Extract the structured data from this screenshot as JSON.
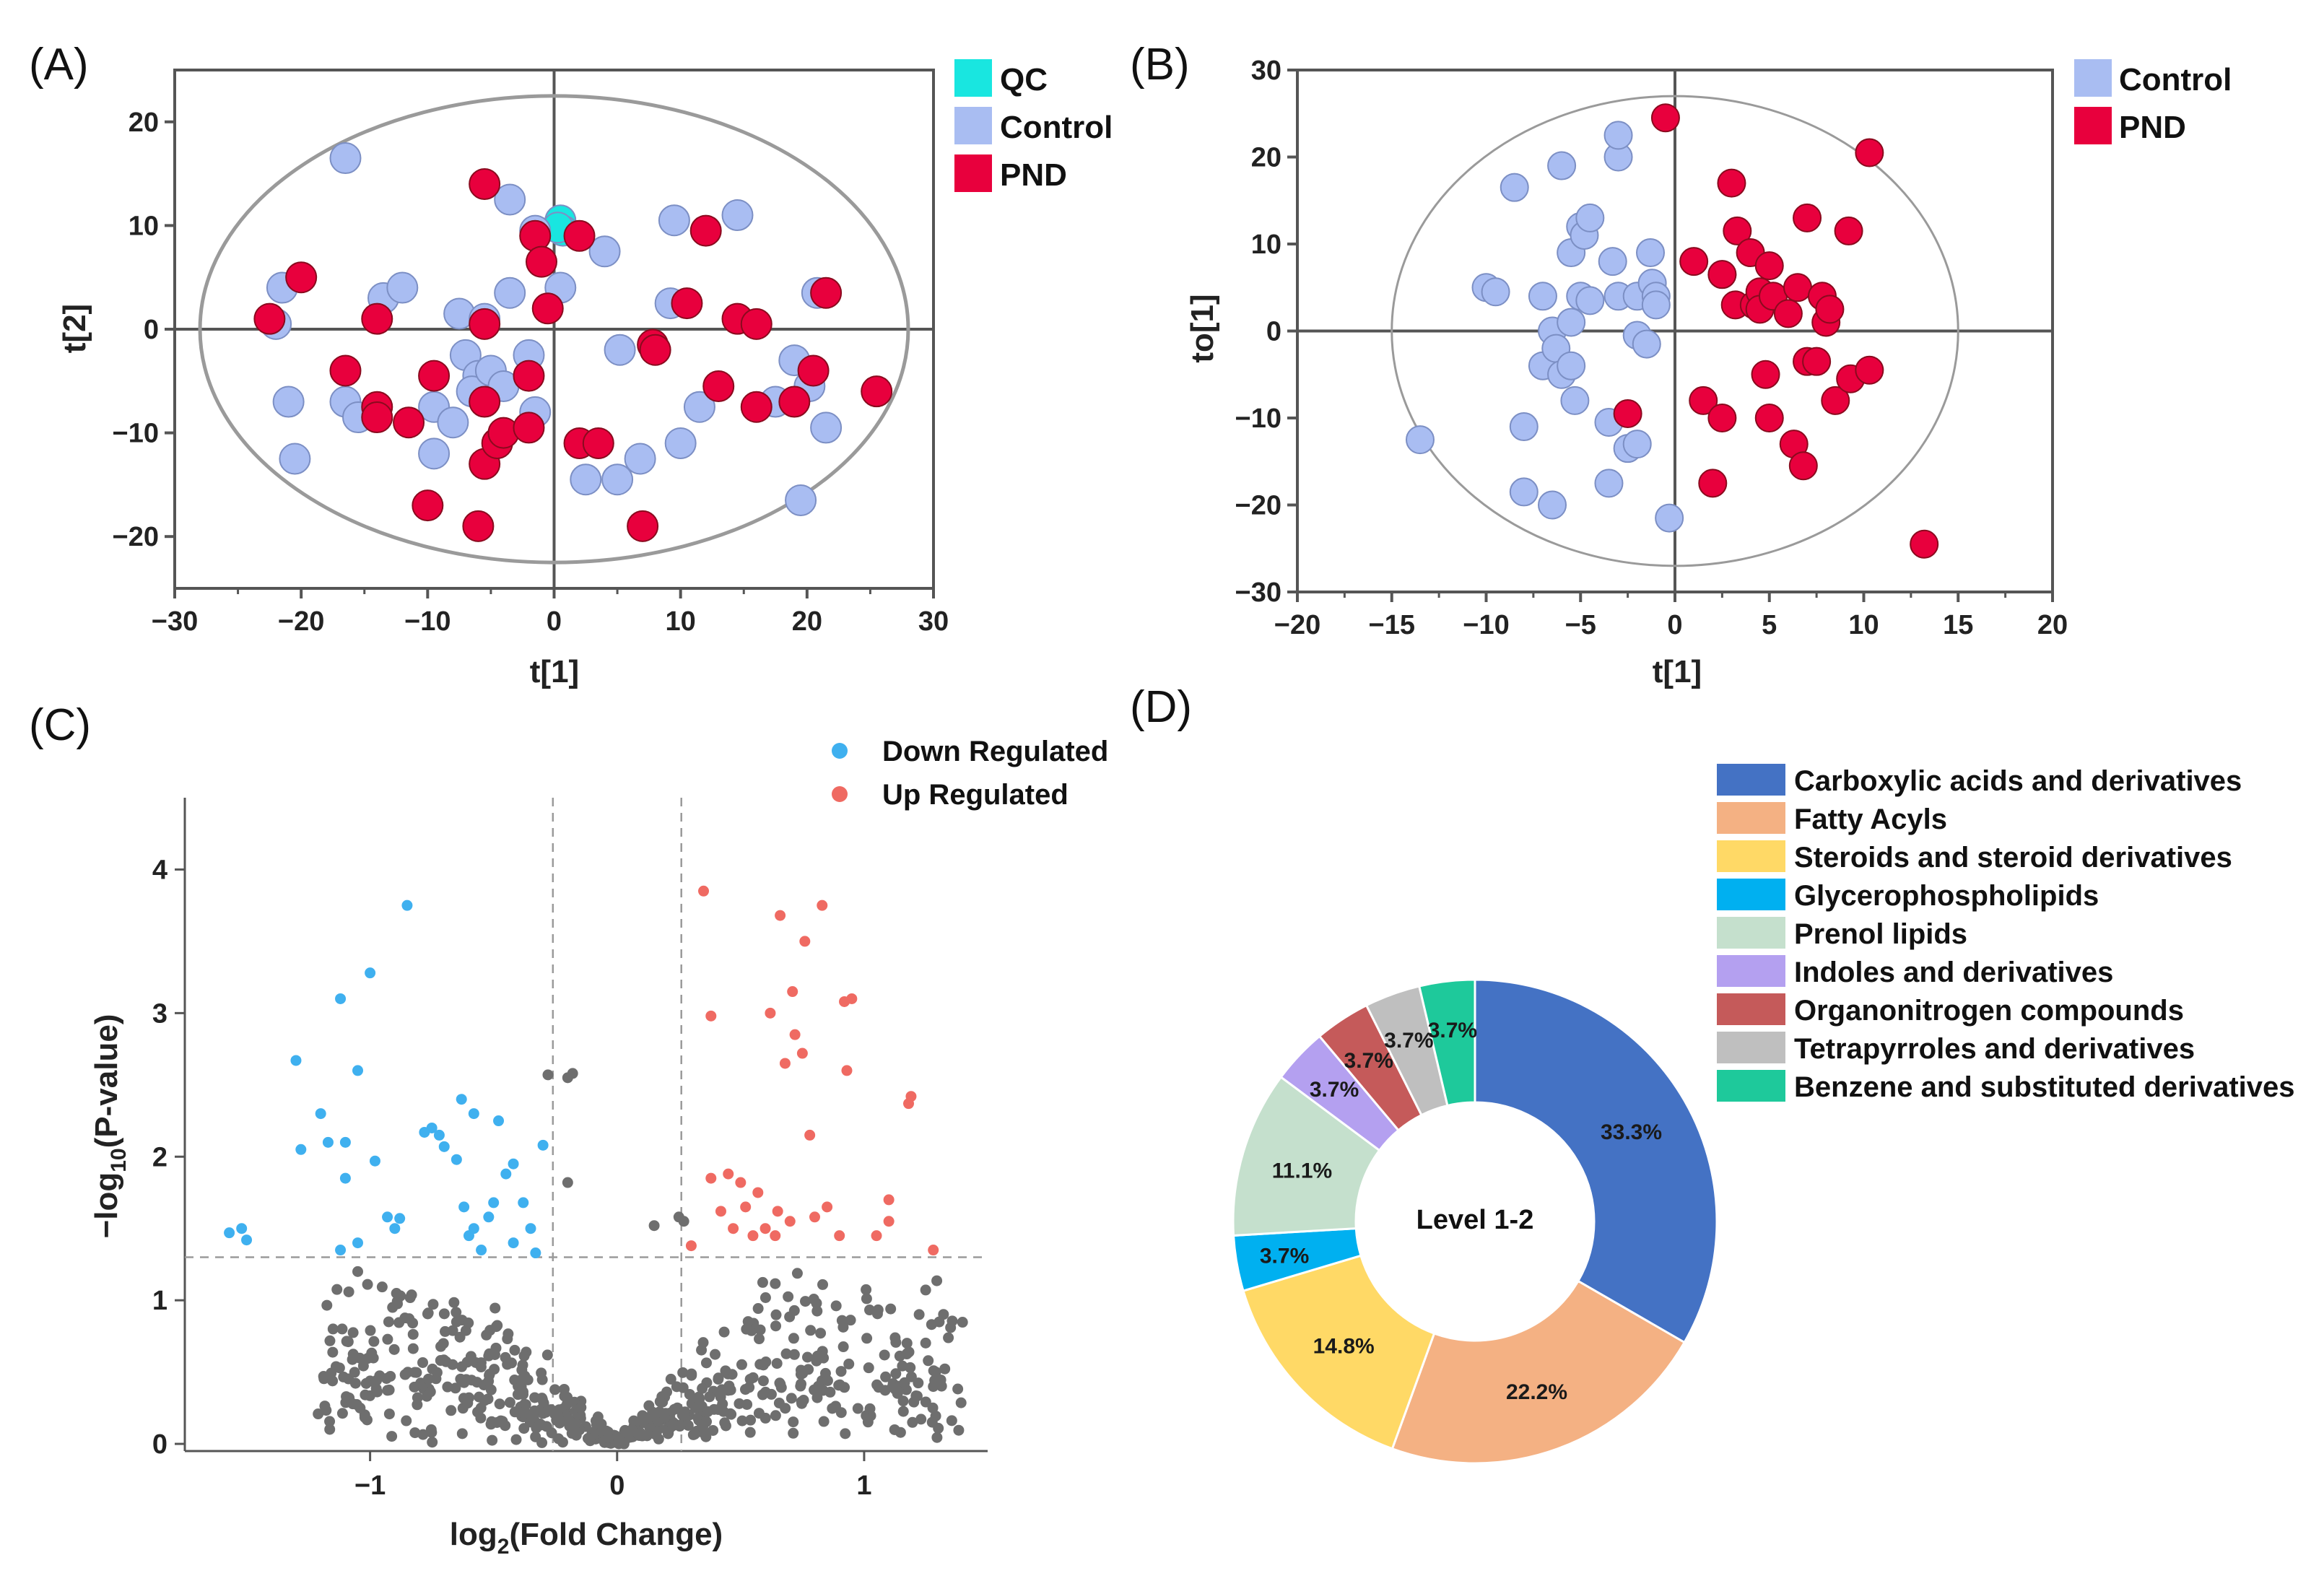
{
  "colors": {
    "qc": "#19e6e0",
    "control": "#a9bdf2",
    "pnd": "#e8003d",
    "down": "#3fb0ef",
    "up": "#ef6a62",
    "ns": "#6e6e6e",
    "ellipse": "#9a9a9a",
    "axis": "#555555"
  },
  "chart_data": [
    {
      "id": "A",
      "panel_label": "(A)",
      "type": "scatter",
      "xlabel": "t[1]",
      "ylabel": "t[2]",
      "xlim": [
        -30,
        30
      ],
      "ylim": [
        -25,
        25
      ],
      "xticks": [
        "−30",
        "−20",
        "−10",
        "0",
        "10",
        "20",
        "30"
      ],
      "yticks": [
        "−20",
        "−10",
        "0",
        "10",
        "20"
      ],
      "ellipse": {
        "rx": 28,
        "ry": 22.5
      },
      "legend": [
        "QC",
        "Control",
        "PND"
      ],
      "series": [
        {
          "name": "QC",
          "color_key": "qc",
          "points": [
            [
              0.5,
              10.5
            ],
            [
              0.7,
              9.5
            ],
            [
              0.3,
              9.8
            ]
          ]
        },
        {
          "name": "Control",
          "color_key": "control",
          "points": [
            [
              -16.5,
              16.5
            ],
            [
              -21.5,
              4
            ],
            [
              -22,
              0.5
            ],
            [
              -21,
              -7
            ],
            [
              -20.5,
              -12.5
            ],
            [
              -16.5,
              -7
            ],
            [
              -15.5,
              -8.5
            ],
            [
              -13.5,
              3
            ],
            [
              -12,
              4
            ],
            [
              -9.5,
              -7.5
            ],
            [
              -9.5,
              -12
            ],
            [
              -8,
              -9
            ],
            [
              -7.5,
              1.5
            ],
            [
              -7,
              -2.5
            ],
            [
              -6,
              -4.5
            ],
            [
              -6.5,
              -6
            ],
            [
              -5,
              -4
            ],
            [
              -5.5,
              1
            ],
            [
              -4,
              -5.5
            ],
            [
              -3.5,
              12.5
            ],
            [
              -3.5,
              3.5
            ],
            [
              -2,
              -2.5
            ],
            [
              -1.5,
              -8
            ],
            [
              -1.5,
              9.5
            ],
            [
              0.5,
              4
            ],
            [
              2.5,
              -14.5
            ],
            [
              4,
              7.5
            ],
            [
              5,
              -14.5
            ],
            [
              5.2,
              -2
            ],
            [
              6.8,
              -12.5
            ],
            [
              9.2,
              2.5
            ],
            [
              9.5,
              10.5
            ],
            [
              10,
              -11
            ],
            [
              11.5,
              -7.5
            ],
            [
              14.5,
              11
            ],
            [
              17.5,
              -7
            ],
            [
              19,
              -3
            ],
            [
              19.5,
              -16.5
            ],
            [
              20.2,
              -5.5
            ],
            [
              20.8,
              3.5
            ],
            [
              21.5,
              -9.5
            ]
          ]
        },
        {
          "name": "PND",
          "color_key": "pnd",
          "points": [
            [
              -22.5,
              1
            ],
            [
              -20,
              5
            ],
            [
              -16.5,
              -4
            ],
            [
              -14,
              1
            ],
            [
              -14,
              -7.5
            ],
            [
              -14,
              -8.5
            ],
            [
              -11.5,
              -9
            ],
            [
              -10,
              -17
            ],
            [
              -9.5,
              -4.5
            ],
            [
              -6,
              -19
            ],
            [
              -5.5,
              14
            ],
            [
              -5.5,
              0.5
            ],
            [
              -5.5,
              -7
            ],
            [
              -5.5,
              -13
            ],
            [
              -4.5,
              -11
            ],
            [
              -4,
              -10
            ],
            [
              -2,
              -9.5
            ],
            [
              -2,
              -4.5
            ],
            [
              -1.5,
              9
            ],
            [
              -1,
              6.5
            ],
            [
              -0.5,
              2
            ],
            [
              2,
              9
            ],
            [
              2,
              -11
            ],
            [
              3.5,
              -11
            ],
            [
              7,
              -19
            ],
            [
              7.8,
              -1.5
            ],
            [
              8,
              -2
            ],
            [
              10.5,
              2.5
            ],
            [
              12,
              9.5
            ],
            [
              13,
              -5.5
            ],
            [
              14.5,
              1
            ],
            [
              16,
              0.5
            ],
            [
              16,
              -7.5
            ],
            [
              19,
              -7
            ],
            [
              20.5,
              -4
            ],
            [
              21.5,
              3.5
            ],
            [
              25.5,
              -6
            ]
          ]
        }
      ]
    },
    {
      "id": "B",
      "panel_label": "(B)",
      "type": "scatter",
      "xlabel": "t[1]",
      "ylabel": "to[1]",
      "xlim": [
        -20,
        20
      ],
      "ylim": [
        -30,
        30
      ],
      "xticks": [
        "−20",
        "−15",
        "−10",
        "−5",
        "0",
        "5",
        "10",
        "15",
        "20"
      ],
      "yticks": [
        "−30",
        "−20",
        "−10",
        "0",
        "10",
        "20",
        "30"
      ],
      "ellipse": {
        "rx": 15,
        "ry": 27
      },
      "legend": [
        "Control",
        "PND"
      ],
      "series": [
        {
          "name": "Control",
          "color_key": "control",
          "points": [
            [
              -13.5,
              -12.5
            ],
            [
              -10,
              5
            ],
            [
              -9.5,
              4.5
            ],
            [
              -8.5,
              16.5
            ],
            [
              -8,
              -11
            ],
            [
              -8,
              -18.5
            ],
            [
              -7,
              -4
            ],
            [
              -7,
              4
            ],
            [
              -6.5,
              -20
            ],
            [
              -6.5,
              0
            ],
            [
              -6.3,
              -2
            ],
            [
              -6,
              -5
            ],
            [
              -6,
              19
            ],
            [
              -5.5,
              9
            ],
            [
              -5.5,
              -4
            ],
            [
              -5.5,
              1
            ],
            [
              -5.3,
              -8
            ],
            [
              -5,
              4
            ],
            [
              -5,
              12
            ],
            [
              -4.8,
              11
            ],
            [
              -4.5,
              3.5
            ],
            [
              -4.5,
              13
            ],
            [
              -3.5,
              -10.5
            ],
            [
              -3.5,
              -17.5
            ],
            [
              -3.3,
              8
            ],
            [
              -3,
              4
            ],
            [
              -3,
              20
            ],
            [
              -3,
              22.5
            ],
            [
              -2.5,
              -13.5
            ],
            [
              -2,
              4
            ],
            [
              -2,
              -0.5
            ],
            [
              -2,
              -13
            ],
            [
              -1.5,
              -1.5
            ],
            [
              -1.3,
              9
            ],
            [
              -1.2,
              5.5
            ],
            [
              -1,
              4
            ],
            [
              -1,
              3
            ],
            [
              -0.3,
              -21.5
            ],
            [
              2.5,
              6.5
            ]
          ]
        },
        {
          "name": "PND",
          "color_key": "pnd",
          "points": [
            [
              -2.5,
              -9.5
            ],
            [
              -0.5,
              24.5
            ],
            [
              1,
              8
            ],
            [
              1.5,
              -8
            ],
            [
              2,
              -17.5
            ],
            [
              2.5,
              -10
            ],
            [
              2.5,
              6.5
            ],
            [
              3,
              17
            ],
            [
              3.2,
              3
            ],
            [
              3.3,
              11.5
            ],
            [
              4,
              9
            ],
            [
              4.2,
              3
            ],
            [
              4.5,
              4.5
            ],
            [
              4.5,
              2.5
            ],
            [
              4.8,
              -5
            ],
            [
              5,
              -10
            ],
            [
              5,
              7.5
            ],
            [
              5.2,
              4
            ],
            [
              6,
              2
            ],
            [
              6.3,
              -13
            ],
            [
              6.5,
              5
            ],
            [
              6.8,
              -15.5
            ],
            [
              7,
              -3.5
            ],
            [
              7,
              13
            ],
            [
              7.5,
              -3.5
            ],
            [
              7.8,
              4
            ],
            [
              8,
              1
            ],
            [
              8.2,
              2.5
            ],
            [
              8.5,
              -8
            ],
            [
              9.2,
              11.5
            ],
            [
              9.3,
              -5.5
            ],
            [
              10.3,
              -4.5
            ],
            [
              10.3,
              20.5
            ],
            [
              13.2,
              -24.5
            ]
          ]
        }
      ]
    },
    {
      "id": "C",
      "panel_label": "(C)",
      "type": "scatter",
      "xlabel": "log₂(Fold Change)",
      "ylabel": "−log₁₀(P-value)",
      "xlim": [
        -1.75,
        1.5
      ],
      "ylim": [
        -0.05,
        4.5
      ],
      "xticks": [
        "−1",
        "0",
        "1"
      ],
      "yticks": [
        "0",
        "1",
        "2",
        "3",
        "4"
      ],
      "thresholds": {
        "fc_left": -0.26,
        "fc_right": 0.26,
        "p": 1.3
      },
      "legend": [
        "Down Regulated",
        "Up Regulated"
      ],
      "series": [
        {
          "name": "Down Regulated",
          "color_key": "down",
          "points": [
            [
              -1.57,
              1.47
            ],
            [
              -1.52,
              1.5
            ],
            [
              -1.5,
              1.42
            ],
            [
              -1.3,
              2.67
            ],
            [
              -1.28,
              2.05
            ],
            [
              -1.2,
              2.3
            ],
            [
              -1.17,
              2.1
            ],
            [
              -1.12,
              3.1
            ],
            [
              -1.1,
              2.1
            ],
            [
              -1.1,
              1.85
            ],
            [
              -1.12,
              1.35
            ],
            [
              -1.05,
              2.6
            ],
            [
              -1.05,
              1.4
            ],
            [
              -1.0,
              3.28
            ],
            [
              -0.98,
              1.97
            ],
            [
              -0.93,
              1.58
            ],
            [
              -0.9,
              1.5
            ],
            [
              -0.88,
              1.57
            ],
            [
              -0.85,
              3.75
            ],
            [
              -0.78,
              2.17
            ],
            [
              -0.75,
              2.2
            ],
            [
              -0.72,
              2.15
            ],
            [
              -0.7,
              2.07
            ],
            [
              -0.65,
              1.98
            ],
            [
              -0.63,
              2.4
            ],
            [
              -0.62,
              1.65
            ],
            [
              -0.6,
              1.45
            ],
            [
              -0.58,
              2.3
            ],
            [
              -0.58,
              1.5
            ],
            [
              -0.55,
              1.35
            ],
            [
              -0.52,
              1.58
            ],
            [
              -0.5,
              1.68
            ],
            [
              -0.48,
              2.25
            ],
            [
              -0.45,
              1.88
            ],
            [
              -0.42,
              1.95
            ],
            [
              -0.42,
              1.4
            ],
            [
              -0.38,
              1.68
            ],
            [
              -0.35,
              1.5
            ],
            [
              -0.33,
              1.33
            ],
            [
              -0.3,
              2.08
            ]
          ]
        },
        {
          "name": "Up Regulated",
          "color_key": "up",
          "points": [
            [
              0.3,
              1.38
            ],
            [
              0.35,
              3.85
            ],
            [
              0.38,
              2.98
            ],
            [
              0.38,
              1.85
            ],
            [
              0.42,
              1.62
            ],
            [
              0.45,
              1.88
            ],
            [
              0.47,
              1.5
            ],
            [
              0.5,
              1.82
            ],
            [
              0.52,
              1.65
            ],
            [
              0.55,
              1.45
            ],
            [
              0.57,
              1.75
            ],
            [
              0.6,
              1.5
            ],
            [
              0.62,
              3.0
            ],
            [
              0.64,
              1.45
            ],
            [
              0.65,
              1.62
            ],
            [
              0.66,
              3.68
            ],
            [
              0.68,
              2.65
            ],
            [
              0.7,
              1.55
            ],
            [
              0.71,
              3.15
            ],
            [
              0.72,
              2.85
            ],
            [
              0.75,
              2.72
            ],
            [
              0.76,
              3.5
            ],
            [
              0.78,
              2.15
            ],
            [
              0.8,
              1.58
            ],
            [
              0.83,
              3.75
            ],
            [
              0.85,
              1.65
            ],
            [
              0.9,
              1.45
            ],
            [
              0.92,
              3.08
            ],
            [
              0.93,
              2.6
            ],
            [
              0.95,
              3.1
            ],
            [
              1.05,
              1.45
            ],
            [
              1.1,
              1.55
            ],
            [
              1.1,
              1.7
            ],
            [
              1.18,
              2.37
            ],
            [
              1.19,
              2.42
            ],
            [
              1.28,
              1.35
            ]
          ]
        }
      ],
      "ns_count": 650
    },
    {
      "id": "D",
      "panel_label": "(D)",
      "type": "pie",
      "donut": true,
      "center_label": "Level 1-2",
      "slices": [
        {
          "label": "Carboxylic acids and derivatives",
          "value": 33.3,
          "text": "33.3%",
          "color": "#4472c4"
        },
        {
          "label": "Fatty Acyls",
          "value": 22.2,
          "text": "22.2%",
          "color": "#f4b183"
        },
        {
          "label": "Steroids and steroid derivatives",
          "value": 14.8,
          "text": "14.8%",
          "color": "#ffd966"
        },
        {
          "label": "Glycerophospholipids",
          "value": 3.7,
          "text": "3.7%",
          "color": "#00b0f0"
        },
        {
          "label": "Prenol lipids",
          "value": 11.1,
          "text": "11.1%",
          "color": "#c5e0cd"
        },
        {
          "label": "Indoles and derivatives",
          "value": 3.7,
          "text": "3.7%",
          "color": "#b4a0f0"
        },
        {
          "label": "Organonitrogen compounds",
          "value": 3.7,
          "text": "3.7%",
          "color": "#c55a5a"
        },
        {
          "label": "Tetrapyrroles and derivatives",
          "value": 3.7,
          "text": "3.7%",
          "color": "#bfbfbf"
        },
        {
          "label": "Benzene and substituted derivatives",
          "value": 3.7,
          "text": "3.7%",
          "color": "#1ec99b"
        }
      ]
    }
  ]
}
